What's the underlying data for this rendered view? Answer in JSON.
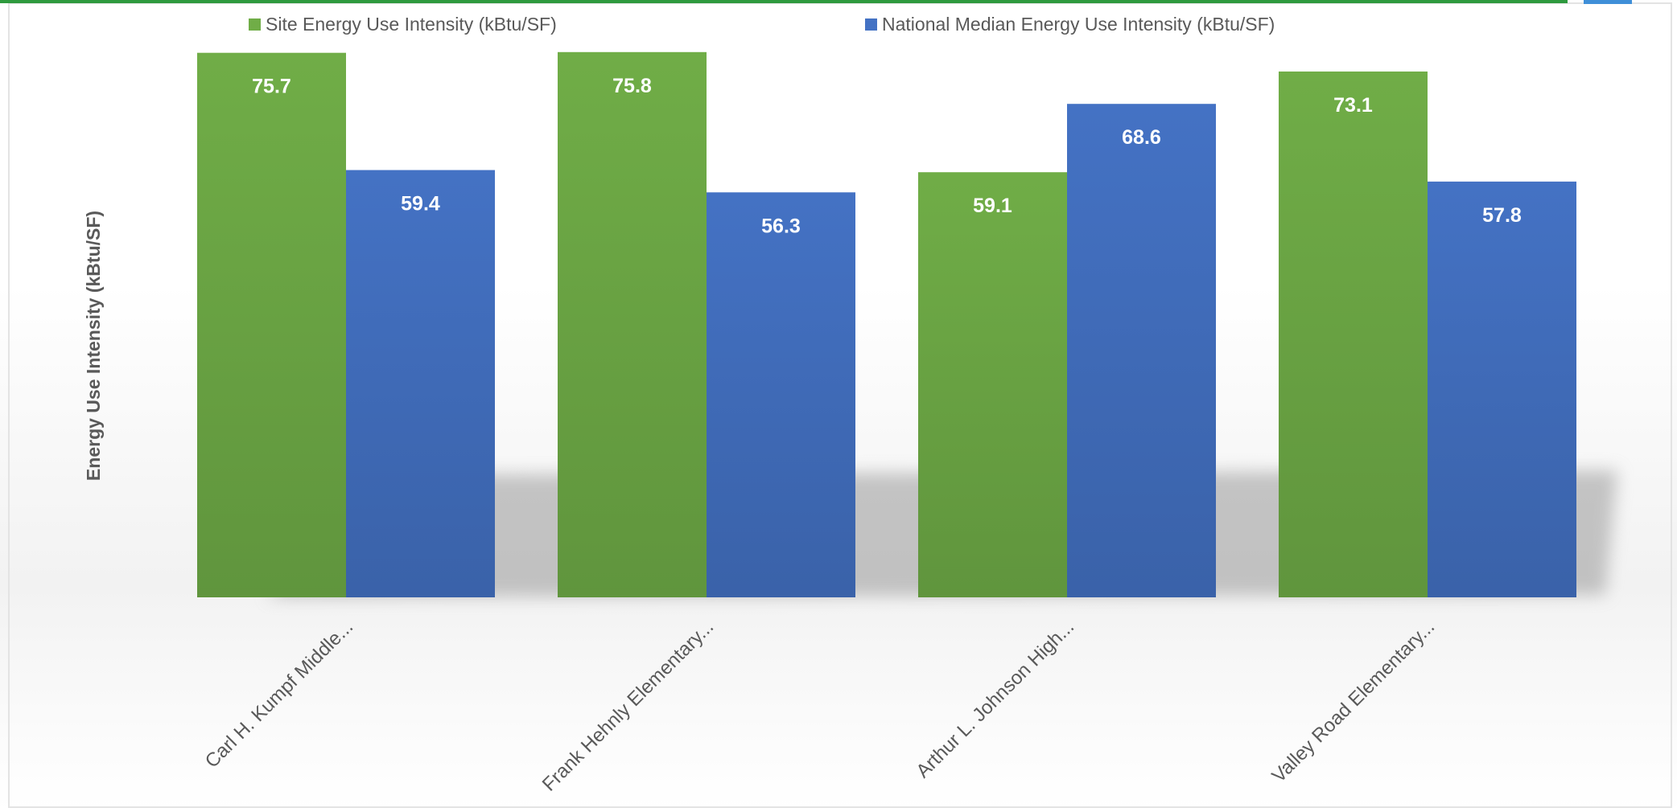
{
  "chart_data": {
    "type": "bar",
    "title": "",
    "xlabel": "",
    "ylabel": "Energy Use Intensity (kBtu/SF)",
    "categories": [
      "Carl H. Kumpf Middle...",
      "Frank Hehnly Elementary...",
      "Arthur L. Johnson High...",
      "Valley Road Elementary..."
    ],
    "series": [
      {
        "name": "Site Energy Use Intensity (kBtu/SF)",
        "color": "#70ad47",
        "values": [
          75.7,
          75.8,
          59.1,
          73.1
        ],
        "labels": [
          "75.7",
          "75.8",
          "59.1",
          "73.1"
        ]
      },
      {
        "name": "National Median Energy Use Intensity (kBtu/SF)",
        "color": "#4472c4",
        "values": [
          59.4,
          56.3,
          68.6,
          57.8
        ],
        "labels": [
          "59.4",
          "56.3",
          "68.6",
          "57.8"
        ]
      }
    ],
    "ylim": [
      0,
      76
    ],
    "grid": false,
    "legend_position": "top"
  },
  "colors": {
    "top_border": "#2e9a3e",
    "frame": "#e3e3e3",
    "text": "#595959",
    "data_label": "#ffffff",
    "top_right_accent": "#3f8fd8"
  }
}
